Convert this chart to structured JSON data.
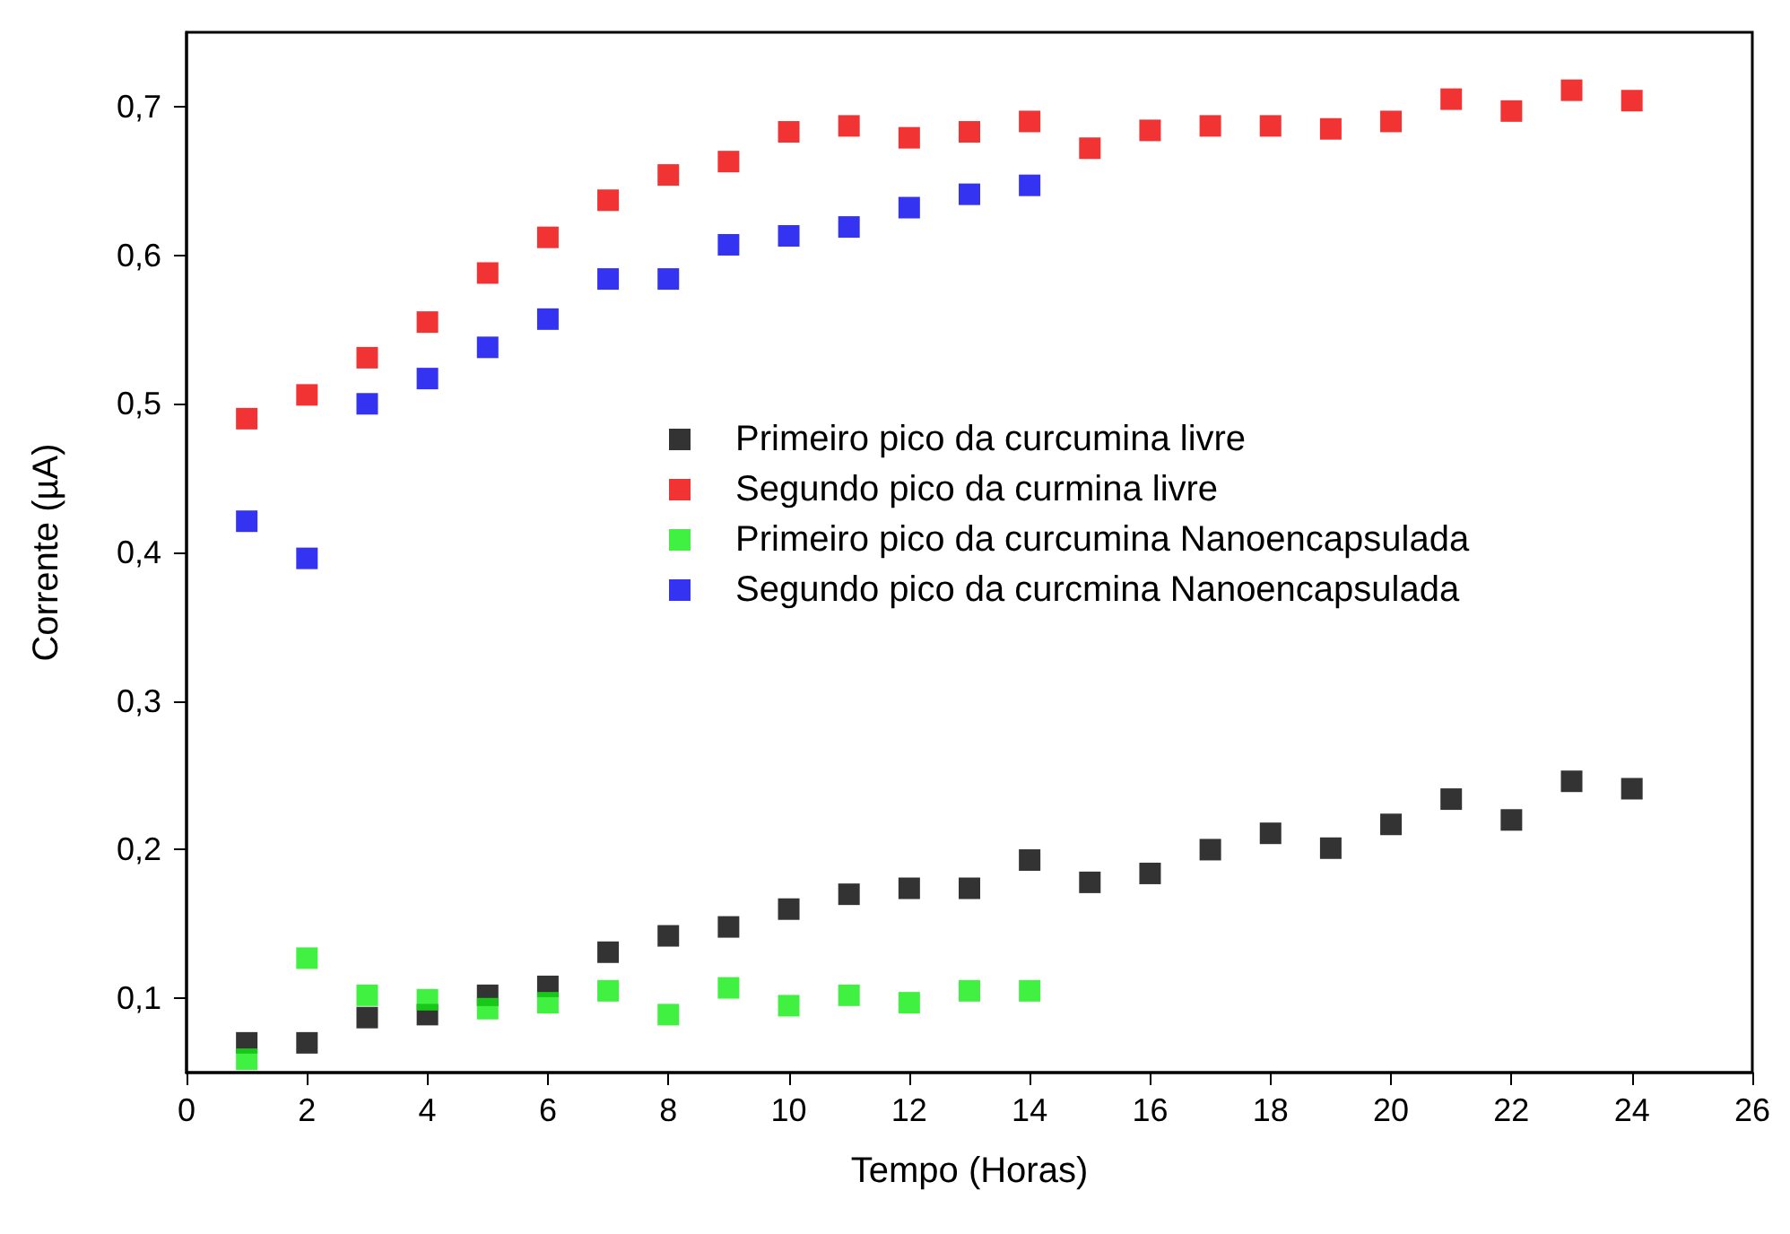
{
  "chart_data": {
    "type": "scatter",
    "xlabel": "Tempo (Horas)",
    "ylabel": "Corrente (µA)",
    "x": [
      1,
      2,
      3,
      4,
      5,
      6,
      7,
      8,
      9,
      10,
      11,
      12,
      13,
      14,
      15,
      16,
      17,
      18,
      19,
      20,
      21,
      22,
      23,
      24
    ],
    "series": [
      {
        "name": "Primeiro pico da curcumina livre",
        "color": "#000000",
        "values": [
          0.07,
          0.07,
          0.087,
          0.089,
          0.102,
          0.108,
          0.131,
          0.142,
          0.148,
          0.16,
          0.17,
          0.174,
          0.174,
          0.193,
          0.178,
          0.184,
          0.2,
          0.211,
          0.201,
          0.217,
          0.234,
          0.22,
          0.246,
          0.241
        ]
      },
      {
        "name": "Segundo pico da curmina livre",
        "color": "#ee0000",
        "values": [
          0.49,
          0.506,
          0.531,
          0.555,
          0.588,
          0.612,
          0.637,
          0.654,
          0.663,
          0.683,
          0.687,
          0.679,
          0.683,
          0.69,
          0.672,
          0.684,
          0.687,
          0.687,
          0.685,
          0.69,
          0.705,
          0.697,
          0.711,
          0.704
        ]
      },
      {
        "name": "Primeiro pico da curcumina Nanoencapsulada",
        "color": "#11ee11",
        "x": [
          1,
          2,
          3,
          4,
          5,
          6,
          7,
          8,
          9,
          10,
          11,
          12,
          13,
          14
        ],
        "values": [
          0.059,
          0.127,
          0.102,
          0.099,
          0.093,
          0.097,
          0.105,
          0.089,
          0.107,
          0.095,
          0.102,
          0.097,
          0.105,
          0.105
        ]
      },
      {
        "name": "Segundo pico da curcmina Nanoencapsulada",
        "color": "#0000ee",
        "x": [
          1,
          2,
          3,
          4,
          5,
          6,
          7,
          8,
          9,
          10,
          11,
          12,
          13,
          14
        ],
        "values": [
          0.421,
          0.396,
          0.5,
          0.517,
          0.538,
          0.557,
          0.584,
          0.584,
          0.607,
          0.613,
          0.619,
          0.632,
          0.641,
          0.647
        ]
      }
    ],
    "xlim": [
      0,
      26
    ],
    "xticks": [
      0,
      2,
      4,
      6,
      8,
      10,
      12,
      14,
      16,
      18,
      20,
      22,
      24,
      26
    ],
    "ylim": [
      0.05,
      0.75
    ],
    "yticks": [
      {
        "value": 0.1,
        "label": "0,1"
      },
      {
        "value": 0.2,
        "label": "0,2"
      },
      {
        "value": 0.3,
        "label": "0,3"
      },
      {
        "value": 0.4,
        "label": "0,4"
      },
      {
        "value": 0.5,
        "label": "0,5"
      },
      {
        "value": 0.6,
        "label": "0,6"
      },
      {
        "value": 0.7,
        "label": "0,7"
      }
    ],
    "marker": "square",
    "grid": false,
    "legend": "right"
  }
}
